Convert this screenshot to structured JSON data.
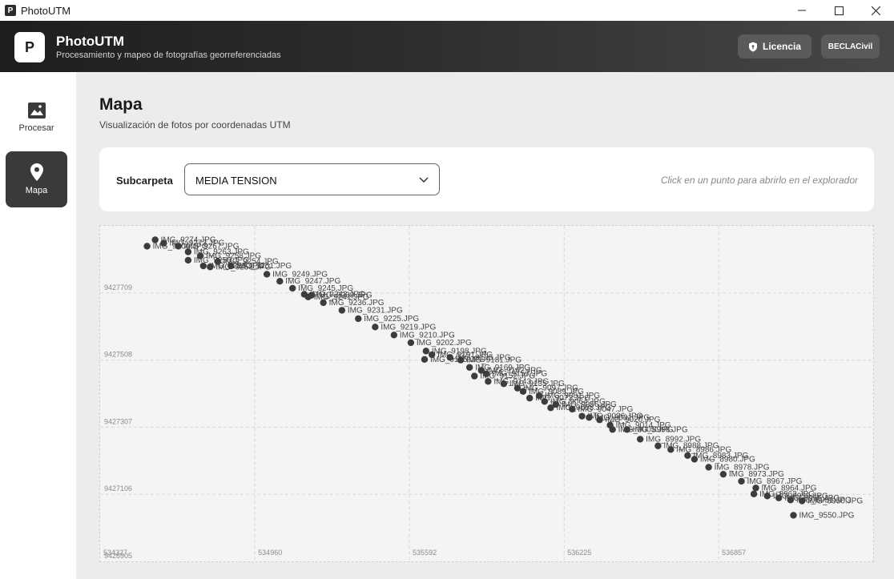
{
  "window": {
    "title": "PhotoUTM"
  },
  "header": {
    "logo_letter": "P",
    "app_name": "PhotoUTM",
    "subtitle": "Procesamiento y mapeo de fotografías georreferenciadas",
    "license_label": "Licencia",
    "user_label": "BECLACivil"
  },
  "sidebar": {
    "items": [
      {
        "label": "Procesar",
        "icon": "image-icon"
      },
      {
        "label": "Mapa",
        "icon": "map-pin-icon",
        "active": true
      }
    ]
  },
  "page": {
    "title": "Mapa",
    "subtitle": "Visualización de fotos por coordenadas UTM"
  },
  "filter": {
    "label": "Subcarpeta",
    "selected": "MEDIA TENSION",
    "hint": "Click en un punto para abrirlo en el explorador"
  },
  "chart_data": {
    "type": "scatter",
    "xlim": [
      534327,
      537489
    ],
    "ylim": [
      9426905,
      9427910
    ],
    "x_ticks": [
      "534327",
      "534960",
      "535592",
      "536225",
      "536857"
    ],
    "y_ticks": [
      "9427709",
      "9427508",
      "9427307",
      "9427106",
      "9426905"
    ],
    "x_tick_values": [
      534327,
      534960,
      535592,
      536225,
      536857
    ],
    "y_tick_values": [
      9427709,
      9427508,
      9427307,
      9427106,
      9426905
    ],
    "grid": true,
    "points": [
      {
        "x": 534552,
        "y": 9427868,
        "label": "IMG_9274.JPG"
      },
      {
        "x": 534587,
        "y": 9427858,
        "label": "IMG_9273.JPG"
      },
      {
        "x": 534519,
        "y": 9427849,
        "label": "IMG_9300.JPG"
      },
      {
        "x": 534647,
        "y": 9427849,
        "label": "IMG_9267.JPG"
      },
      {
        "x": 534687,
        "y": 9427832,
        "label": "IMG_9263.JPG"
      },
      {
        "x": 534737,
        "y": 9427820,
        "label": "IMG_9258.JPG"
      },
      {
        "x": 534687,
        "y": 9427807,
        "label": "IMG_9256.JPG"
      },
      {
        "x": 534808,
        "y": 9427803,
        "label": "IMG_9254.JPG"
      },
      {
        "x": 534749,
        "y": 9427790,
        "label": "IMG_9255.JPG"
      },
      {
        "x": 534777,
        "y": 9427787,
        "label": "IMG_9253.JPG"
      },
      {
        "x": 534862,
        "y": 9427790,
        "label": "IMG_9251.JPG"
      },
      {
        "x": 535009,
        "y": 9427765,
        "label": "IMG_9249.JPG"
      },
      {
        "x": 535062,
        "y": 9427744,
        "label": "IMG_9247.JPG"
      },
      {
        "x": 535114,
        "y": 9427723,
        "label": "IMG_9245.JPG"
      },
      {
        "x": 535162,
        "y": 9427705,
        "label": "IMG_9243.JPG"
      },
      {
        "x": 535178,
        "y": 9427697,
        "label": "IMG_9241.JPG"
      },
      {
        "x": 535191,
        "y": 9427702,
        "label": "IMG_9239.JPG"
      },
      {
        "x": 535240,
        "y": 9427680,
        "label": "IMG_9236.JPG"
      },
      {
        "x": 535316,
        "y": 9427657,
        "label": "IMG_9231.JPG"
      },
      {
        "x": 535383,
        "y": 9427632,
        "label": "IMG_9225.JPG"
      },
      {
        "x": 535452,
        "y": 9427607,
        "label": "IMG_9219.JPG"
      },
      {
        "x": 535529,
        "y": 9427583,
        "label": "IMG_9210.JPG"
      },
      {
        "x": 535598,
        "y": 9427560,
        "label": "IMG_9202.JPG"
      },
      {
        "x": 535660,
        "y": 9427535,
        "label": "IMG_9198.JPG"
      },
      {
        "x": 535684,
        "y": 9427524,
        "label": "IMG_9191.JPG"
      },
      {
        "x": 535758,
        "y": 9427516,
        "label": "IMG_9185.JPG"
      },
      {
        "x": 535654,
        "y": 9427510,
        "label": "IMG_9195.JPG"
      },
      {
        "x": 535802,
        "y": 9427508,
        "label": "IMG_9181.JPG"
      },
      {
        "x": 535838,
        "y": 9427486,
        "label": "IMG_9169.JPG"
      },
      {
        "x": 535886,
        "y": 9427477,
        "label": "IMG_9162.JPG"
      },
      {
        "x": 535907,
        "y": 9427467,
        "label": "IMG_9157.JPG"
      },
      {
        "x": 535858,
        "y": 9427460,
        "label": "IMG_9152.JPG"
      },
      {
        "x": 535914,
        "y": 9427444,
        "label": "IMG_9143.JPG"
      },
      {
        "x": 535978,
        "y": 9427437,
        "label": "IMG_9135.JPG"
      },
      {
        "x": 536034,
        "y": 9427424,
        "label": "IMG_9097.JPG"
      },
      {
        "x": 536057,
        "y": 9427414,
        "label": "IMG_9089.JPG"
      },
      {
        "x": 536123,
        "y": 9427401,
        "label": "IMG_9081.JPG"
      },
      {
        "x": 536084,
        "y": 9427394,
        "label": "IMG_9072.JPG"
      },
      {
        "x": 536145,
        "y": 9427384,
        "label": "IMG_9064.JPG"
      },
      {
        "x": 536191,
        "y": 9427375,
        "label": "IMG_9056.JPG"
      },
      {
        "x": 536170,
        "y": 9427365,
        "label": "IMG_9058.JPG"
      },
      {
        "x": 536258,
        "y": 9427361,
        "label": "IMG_9047.JPG"
      },
      {
        "x": 536298,
        "y": 9427340,
        "label": "IMG_9036.JPG"
      },
      {
        "x": 536327,
        "y": 9427336,
        "label": "IMG_9031.JPG"
      },
      {
        "x": 536370,
        "y": 9427329,
        "label": "IMG_9020.JPG"
      },
      {
        "x": 536413,
        "y": 9427313,
        "label": "IMG_9014.JPG"
      },
      {
        "x": 536423,
        "y": 9427300,
        "label": "IMG_9005.JPG"
      },
      {
        "x": 536482,
        "y": 9427300,
        "label": "IMG_8998.JPG"
      },
      {
        "x": 536536,
        "y": 9427271,
        "label": "IMG_8992.JPG"
      },
      {
        "x": 536609,
        "y": 9427251,
        "label": "IMG_8988.JPG"
      },
      {
        "x": 536661,
        "y": 9427240,
        "label": "IMG_8986.JPG"
      },
      {
        "x": 536730,
        "y": 9427222,
        "label": "IMG_8983.JPG"
      },
      {
        "x": 536758,
        "y": 9427211,
        "label": "IMG_8980.JPG"
      },
      {
        "x": 536816,
        "y": 9427187,
        "label": "IMG_8978.JPG"
      },
      {
        "x": 536876,
        "y": 9427166,
        "label": "IMG_8973.JPG"
      },
      {
        "x": 536950,
        "y": 9427145,
        "label": "IMG_8967.JPG"
      },
      {
        "x": 537009,
        "y": 9427125,
        "label": "IMG_8964.JPG"
      },
      {
        "x": 537001,
        "y": 9427107,
        "label": "IMG_8962.JPG"
      },
      {
        "x": 537056,
        "y": 9427101,
        "label": "IMG_8958.JPG"
      },
      {
        "x": 537103,
        "y": 9427095,
        "label": "IMG_8955.JPG"
      },
      {
        "x": 537151,
        "y": 9427089,
        "label": "IMG_8951.JPG"
      },
      {
        "x": 537198,
        "y": 9427086,
        "label": "IMG_8950.JPG"
      },
      {
        "x": 537163,
        "y": 9427043,
        "label": "IMG_9550.JPG"
      }
    ]
  },
  "colors": {
    "point": "#3c3c3c",
    "active_nav": "#3a3a3a",
    "header_dark": "#1e1e1e"
  }
}
